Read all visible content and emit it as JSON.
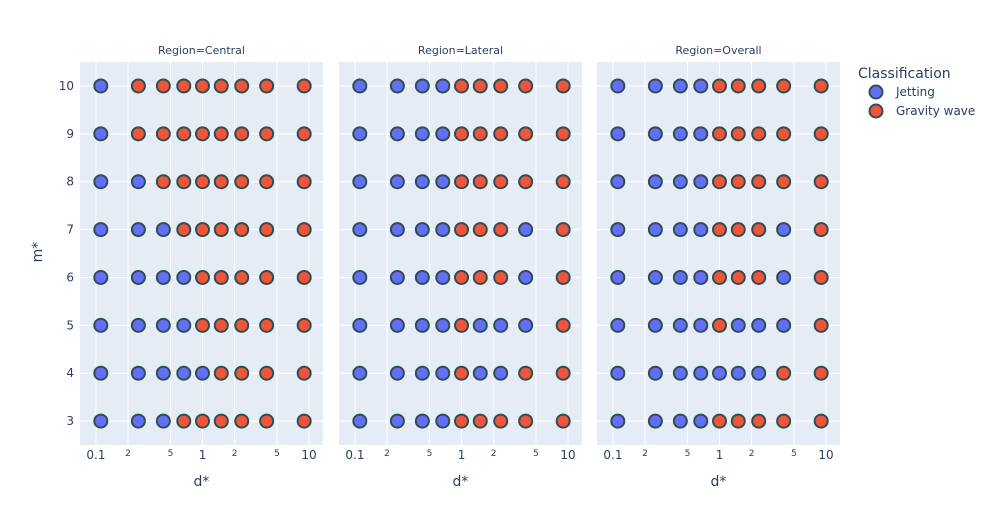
{
  "chart_data": {
    "type": "scatter",
    "xlabel": "d*",
    "ylabel": "m*",
    "x_scale": "log",
    "xlim_log10": [
      -1.15,
      1.131
    ],
    "ylim": [
      2.5,
      10.5
    ],
    "x_tick_labels": [
      {
        "v": 0.1,
        "t": "0.1",
        "major": true
      },
      {
        "v": 0.2,
        "t": "2",
        "major": false
      },
      {
        "v": 0.5,
        "t": "5",
        "major": false
      },
      {
        "v": 1,
        "t": "1",
        "major": true
      },
      {
        "v": 2,
        "t": "2",
        "major": false
      },
      {
        "v": 5,
        "t": "5",
        "major": false
      },
      {
        "v": 10,
        "t": "10",
        "major": true
      }
    ],
    "y_ticks": [
      3,
      4,
      5,
      6,
      7,
      8,
      9,
      10
    ],
    "grid": true,
    "legend": {
      "title": "Classification",
      "placement": "right",
      "entries": [
        {
          "name": "Jetting",
          "color": "#636efa"
        },
        {
          "name": "Gravity wave",
          "color": "#EF553B"
        }
      ]
    },
    "marker_outline_color": "#2f4f4f",
    "x_values": [
      0.111,
      0.25,
      0.429,
      0.667,
      1,
      1.5,
      2.333,
      4,
      9
    ],
    "m_values": [
      10,
      9,
      8,
      7,
      6,
      5,
      4,
      3
    ],
    "facets": [
      {
        "title": "Region=Central",
        "rows": [
          "JGGGGGGGG",
          "JGGGGGGGG",
          "JJGGGGGGG",
          "JJJGGGGGG",
          "JJJJGGGGG",
          "JJJJGGGGG",
          "JJJJJGGGG",
          "JJJGGGGGG"
        ]
      },
      {
        "title": "Region=Lateral",
        "rows": [
          "JJJJGGGGG",
          "JJJJGGGGG",
          "JJJJGGGGG",
          "JJJJGGGJG",
          "JJJJGGGJG",
          "JJJJGJJJG",
          "JJJJGJJGG",
          "JJJJGGGGG"
        ]
      },
      {
        "title": "Region=Overall",
        "rows": [
          "JJJJGGGGG",
          "JJJJGGGGG",
          "JJJJGGGGG",
          "JJJJGGGJG",
          "JJJJGGGJG",
          "JJJJGJJJG",
          "JJJJJJJGG",
          "JJJJGGGGG"
        ]
      }
    ],
    "class_codes": {
      "J": "Jetting",
      "G": "Gravity wave"
    }
  }
}
